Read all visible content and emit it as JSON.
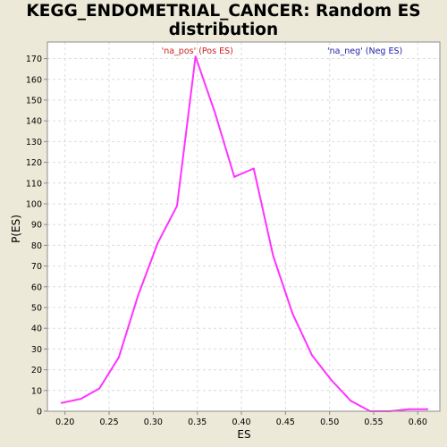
{
  "chart_data": {
    "type": "line",
    "title_lines": [
      "KEGG_ENDOMETRIAL_CANCER: Random ES",
      "distribution"
    ],
    "xlabel": "ES",
    "ylabel": "P(ES)",
    "xlim": [
      0.18,
      0.625
    ],
    "ylim": [
      0,
      178
    ],
    "x_ticks": [
      0.2,
      0.25,
      0.3,
      0.35,
      0.4,
      0.45,
      0.5,
      0.55,
      0.6
    ],
    "x_tick_labels": [
      "0.20",
      "0.25",
      "0.30",
      "0.35",
      "0.40",
      "0.45",
      "0.50",
      "0.55",
      "0.60"
    ],
    "y_ticks": [
      0,
      10,
      20,
      30,
      40,
      50,
      60,
      70,
      80,
      90,
      100,
      110,
      120,
      130,
      140,
      150,
      160,
      170
    ],
    "y_tick_labels": [
      "0",
      "10",
      "20",
      "30",
      "40",
      "50",
      "60",
      "70",
      "80",
      "90",
      "100",
      "110",
      "120",
      "130",
      "140",
      "150",
      "160",
      "170"
    ],
    "grid": true,
    "legend": [
      {
        "label": "'na_pos' (Pos ES)",
        "color": "#cc2222",
        "value": 0.35
      },
      {
        "label": "'na_neg' (Neg ES)",
        "color": "#2222aa",
        "value": 0.54
      }
    ],
    "series": [
      {
        "name": "Random ES distribution",
        "color": "#ff33ff",
        "x": [
          0.196,
          0.218,
          0.239,
          0.261,
          0.283,
          0.305,
          0.327,
          0.348,
          0.37,
          0.392,
          0.414,
          0.436,
          0.458,
          0.48,
          0.502,
          0.524,
          0.546,
          0.568,
          0.59,
          0.611
        ],
        "y": [
          4,
          6,
          11,
          26,
          56,
          81,
          99,
          171,
          144,
          113,
          117,
          75,
          47,
          27,
          15,
          5,
          0,
          0,
          1,
          1
        ]
      }
    ]
  }
}
